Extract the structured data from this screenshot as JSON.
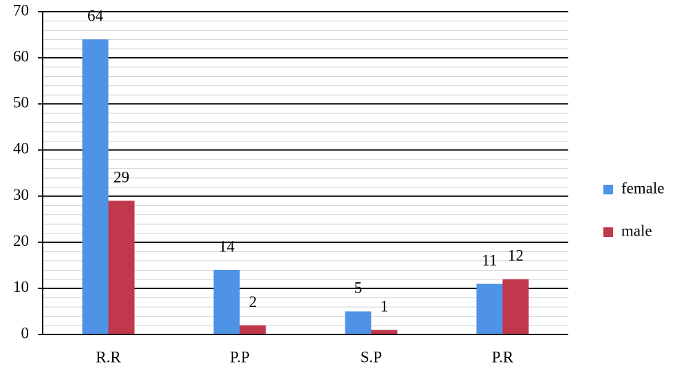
{
  "chart_data": {
    "type": "bar",
    "categories": [
      "R.R",
      "P.P",
      "S.P",
      "P.R"
    ],
    "series": [
      {
        "name": "female",
        "color": "#4f93e6",
        "values": [
          64,
          14,
          5,
          11
        ]
      },
      {
        "name": "male",
        "color": "#c1374b",
        "values": [
          29,
          2,
          1,
          12
        ]
      }
    ],
    "ylim": [
      0,
      70
    ],
    "yticks": [
      0,
      10,
      20,
      30,
      40,
      50,
      60,
      70
    ],
    "grid": true,
    "minor_grid": true,
    "legend": "right"
  }
}
